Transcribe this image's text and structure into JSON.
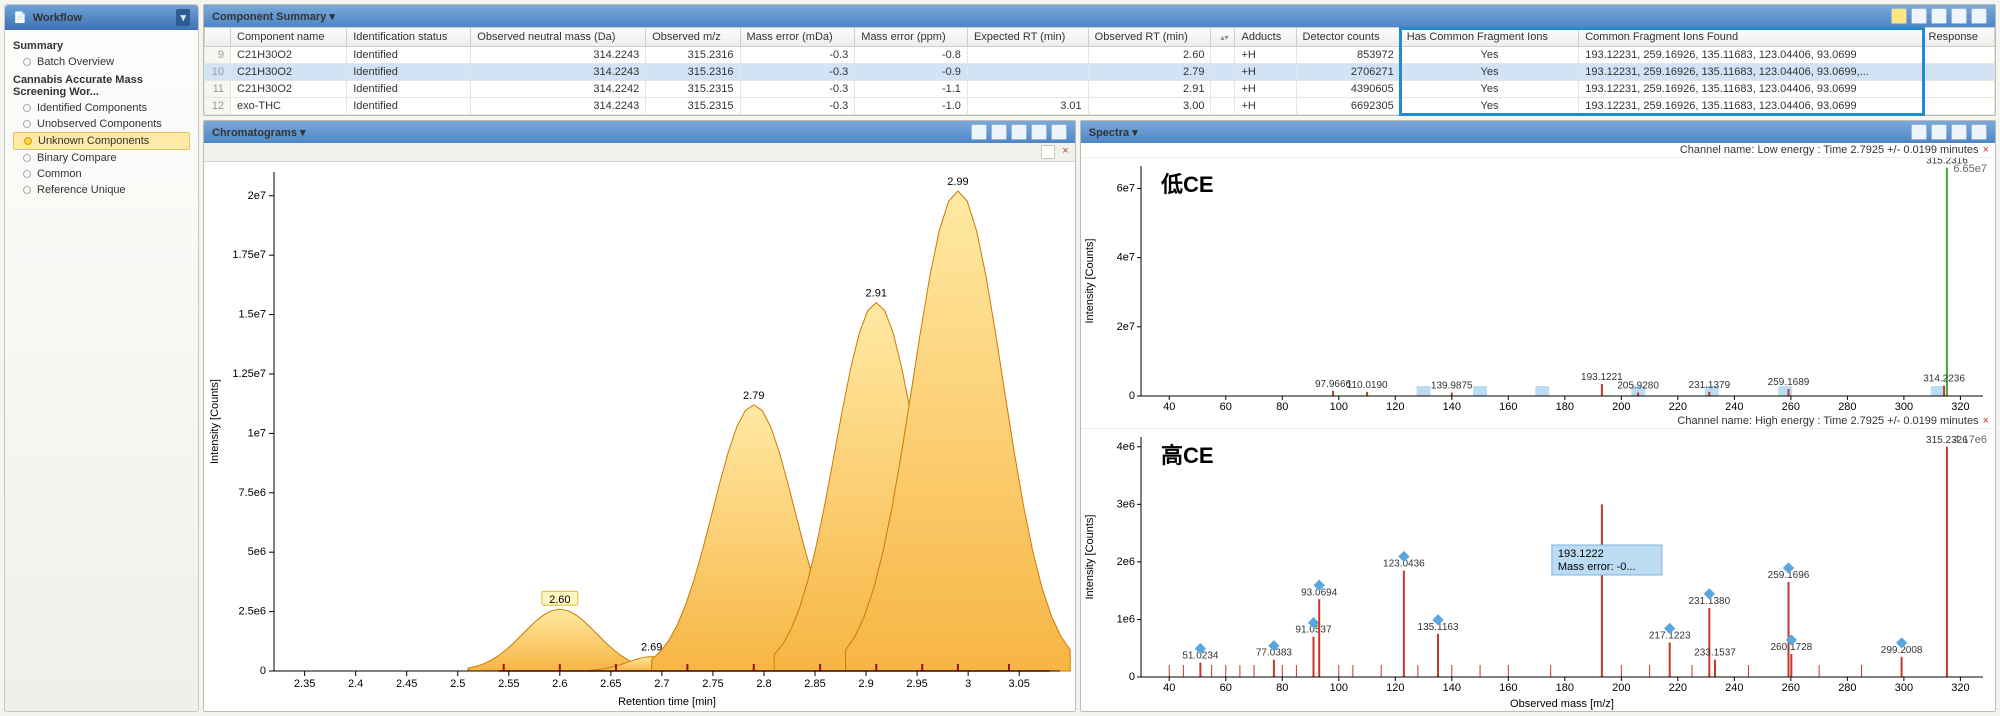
{
  "sidebar": {
    "title": "Workflow",
    "groups": [
      {
        "label": "Summary",
        "items": [
          {
            "label": "Batch Overview",
            "sel": false
          }
        ]
      },
      {
        "label": "Cannabis Accurate Mass Screening Wor...",
        "items": [
          {
            "label": "Identified Components",
            "sel": false
          },
          {
            "label": "Unobserved Components",
            "sel": false
          },
          {
            "label": "Unknown Components",
            "sel": true
          },
          {
            "label": "Binary Compare",
            "sel": false
          },
          {
            "label": "Common",
            "sel": false
          },
          {
            "label": "Reference Unique",
            "sel": false
          }
        ]
      }
    ]
  },
  "summary": {
    "title": "Component Summary ▾",
    "columns": [
      "",
      "Component name",
      "Identification status",
      "Observed neutral mass (Da)",
      "Observed m/z",
      "Mass error (mDa)",
      "Mass error (ppm)",
      "Expected RT (min)",
      "Observed RT (min)",
      "",
      "Adducts",
      "Detector counts",
      "Has Common Fragment Ions",
      "Common Fragment Ions Found",
      "Response"
    ],
    "highlight_cols": [
      12,
      13
    ],
    "rows": [
      {
        "n": "9",
        "name": "C21H30O2",
        "status": "Identified",
        "onm": "314.2243",
        "omz": "315.2316",
        "mda": "-0.3",
        "ppm": "-0.8",
        "eRT": "",
        "oRT": "2.60",
        "add": "+H",
        "det": "853972",
        "hcf": "Yes",
        "cff": "193.12231, 259.16926, 135.11683, 123.04406, 93.0699",
        "sel": false
      },
      {
        "n": "10",
        "name": "C21H30O2",
        "status": "Identified",
        "onm": "314.2243",
        "omz": "315.2316",
        "mda": "-0.3",
        "ppm": "-0.9",
        "eRT": "",
        "oRT": "2.79",
        "add": "+H",
        "det": "2706271",
        "hcf": "Yes",
        "cff": "193.12231, 259.16926, 135.11683, 123.04406, 93.0699,...",
        "sel": true
      },
      {
        "n": "11",
        "name": "C21H30O2",
        "status": "Identified",
        "onm": "314.2242",
        "omz": "315.2315",
        "mda": "-0.3",
        "ppm": "-1.1",
        "eRT": "",
        "oRT": "2.91",
        "add": "+H",
        "det": "4390605",
        "hcf": "Yes",
        "cff": "193.12231, 259.16926, 135.11683, 123.04406, 93.0699",
        "sel": false
      },
      {
        "n": "12",
        "name": "exo-THC",
        "status": "Identified",
        "onm": "314.2243",
        "omz": "315.2315",
        "mda": "-0.3",
        "ppm": "-1.0",
        "eRT": "3.01",
        "oRT": "3.00",
        "add": "+H",
        "det": "6692305",
        "hcf": "Yes",
        "cff": "193.12231, 259.16926, 135.11683, 123.04406, 93.0699",
        "sel": false
      }
    ]
  },
  "chrom": {
    "title": "Chromatograms ▾",
    "xlabel": "Retention time [min]",
    "ylabel": "Intensity [Counts]",
    "xlim": [
      2.32,
      3.09
    ],
    "ylim": [
      0,
      21000000.0
    ],
    "xticks": [
      2.35,
      2.4,
      2.45,
      2.5,
      2.55,
      2.6,
      2.65,
      2.7,
      2.75,
      2.8,
      2.85,
      2.9,
      2.95,
      3,
      3.05
    ],
    "yticks": [
      0,
      2500000.0,
      5000000.0,
      7500000.0,
      10000000.0,
      12500000.0,
      15000000.0,
      17500000.0,
      20000000.0
    ],
    "yticklabels": [
      "0",
      "2.5e6",
      "5e6",
      "7.5e6",
      "1e7",
      "1.25e7",
      "1.5e7",
      "1.75e7",
      "2e7"
    ],
    "peak_fill_top": "#ffe9a3",
    "peak_fill_bot": "#f7b544",
    "peak_stroke": "#cc7a00",
    "baseline_color": "#a01010",
    "highlight_rt": "2.60",
    "peaks": [
      {
        "rt": 2.6,
        "h": 2600000.0,
        "w": 0.045,
        "label": "2.60"
      },
      {
        "rt": 2.69,
        "h": 600000.0,
        "w": 0.03,
        "label": "2.69"
      },
      {
        "rt": 2.79,
        "h": 11200000.0,
        "w": 0.05,
        "label": "2.79"
      },
      {
        "rt": 2.91,
        "h": 15500000.0,
        "w": 0.05,
        "label": "2.91"
      },
      {
        "rt": 2.99,
        "h": 20200000.0,
        "w": 0.055,
        "label": "2.99"
      }
    ],
    "markers_rt": [
      2.545,
      2.6,
      2.655,
      2.725,
      2.79,
      2.855,
      2.91,
      2.955,
      2.99,
      3.04
    ]
  },
  "spectra": {
    "title": "Spectra ▾",
    "low": {
      "note": "Channel name: Low energy : Time 2.7925 +/- 0.0199 minutes",
      "label": "低CE",
      "xlim": [
        30,
        328
      ],
      "ylim": [
        0,
        66500000.0
      ],
      "yticks": [
        0,
        20000000.0,
        40000000.0,
        60000000.0
      ],
      "yticklabels": [
        "0",
        "2e7",
        "4e7",
        "6e7"
      ],
      "ylabel": "Intensity [Counts]",
      "top_right": "6.65e7",
      "bars": [
        {
          "mz": 315.2316,
          "h": 66000000.0,
          "color": "#3fa535",
          "label": "315.2316"
        },
        {
          "mz": 97.97,
          "h": 1500000.0,
          "label": "97.9666"
        },
        {
          "mz": 110.02,
          "h": 1200000.0,
          "label": "110.0190"
        },
        {
          "mz": 139.99,
          "h": 1000000.0,
          "label": "139.9875"
        },
        {
          "mz": 193.12,
          "h": 3500000.0,
          "label": "193.1221"
        },
        {
          "mz": 205.93,
          "h": 1000000.0,
          "label": "205.9280"
        },
        {
          "mz": 231.14,
          "h": 1200000.0,
          "label": "231.1379"
        },
        {
          "mz": 259.17,
          "h": 2000000.0,
          "label": "259.1689"
        },
        {
          "mz": 314.22,
          "h": 3000000.0,
          "label": "314.2236"
        }
      ],
      "boxes": [
        {
          "mz": 130,
          "w": 14
        },
        {
          "mz": 150,
          "w": 14
        },
        {
          "mz": 172,
          "w": 14
        },
        {
          "mz": 206,
          "w": 14
        },
        {
          "mz": 232,
          "w": 14
        },
        {
          "mz": 258,
          "w": 14
        },
        {
          "mz": 312,
          "w": 14
        }
      ]
    },
    "high": {
      "note": "Channel name: High energy : Time 2.7925 +/- 0.0199 minutes",
      "label": "高CE",
      "xlim": [
        30,
        328
      ],
      "ylim": [
        0,
        4170000.0
      ],
      "yticks": [
        0,
        1000000.0,
        2000000.0,
        3000000.0,
        4000000.0
      ],
      "yticklabels": [
        "0",
        "1e6",
        "2e6",
        "3e6",
        "4e6"
      ],
      "ylabel": "Intensity [Counts]",
      "xlabel": "Observed mass [m/z]",
      "top_right": "4.17e6",
      "callout": {
        "mz": 193.1222,
        "lines": [
          "193.1222",
          "Mass error: -0..."
        ]
      },
      "bars": [
        {
          "mz": 51.02,
          "h": 250000.0,
          "label": "51.0234",
          "mk": true
        },
        {
          "mz": 77.04,
          "h": 300000.0,
          "label": "77.0383",
          "mk": true
        },
        {
          "mz": 91.05,
          "h": 700000.0,
          "label": "91.0537",
          "mk": true
        },
        {
          "mz": 93.07,
          "h": 1350000.0,
          "label": "93.0694",
          "mk": true
        },
        {
          "mz": 123.04,
          "h": 1850000.0,
          "label": "123.0436",
          "mk": true
        },
        {
          "mz": 135.12,
          "h": 750000.0,
          "label": "135.1163",
          "mk": true
        },
        {
          "mz": 193.12,
          "h": 3000000.0,
          "label": ""
        },
        {
          "mz": 217.12,
          "h": 600000.0,
          "label": "217.1223",
          "mk": true
        },
        {
          "mz": 231.14,
          "h": 1200000.0,
          "label": "231.1380",
          "mk": true
        },
        {
          "mz": 233.15,
          "h": 300000.0,
          "label": "233.1537"
        },
        {
          "mz": 259.17,
          "h": 1650000.0,
          "label": "259.1696",
          "mk": true
        },
        {
          "mz": 260.17,
          "h": 400000.0,
          "label": "260.1728",
          "mk": true
        },
        {
          "mz": 299.2,
          "h": 350000.0,
          "label": "299.2008",
          "mk": true
        },
        {
          "mz": 315.23,
          "h": 4000000.0,
          "color": "#c0392b",
          "label": "315.2326"
        }
      ],
      "noise": [
        40,
        45,
        55,
        60,
        65,
        70,
        80,
        85,
        100,
        105,
        115,
        128,
        140,
        150,
        160,
        175,
        200,
        210,
        225,
        245,
        270,
        285
      ]
    },
    "xticks": [
      40,
      60,
      80,
      100,
      120,
      140,
      160,
      180,
      200,
      220,
      240,
      260,
      280,
      300,
      320
    ]
  },
  "colors": {
    "grid": "#d9d9d9",
    "axis": "#000",
    "lowbar": "#a5cdef",
    "marker": "#5aa7e0"
  }
}
